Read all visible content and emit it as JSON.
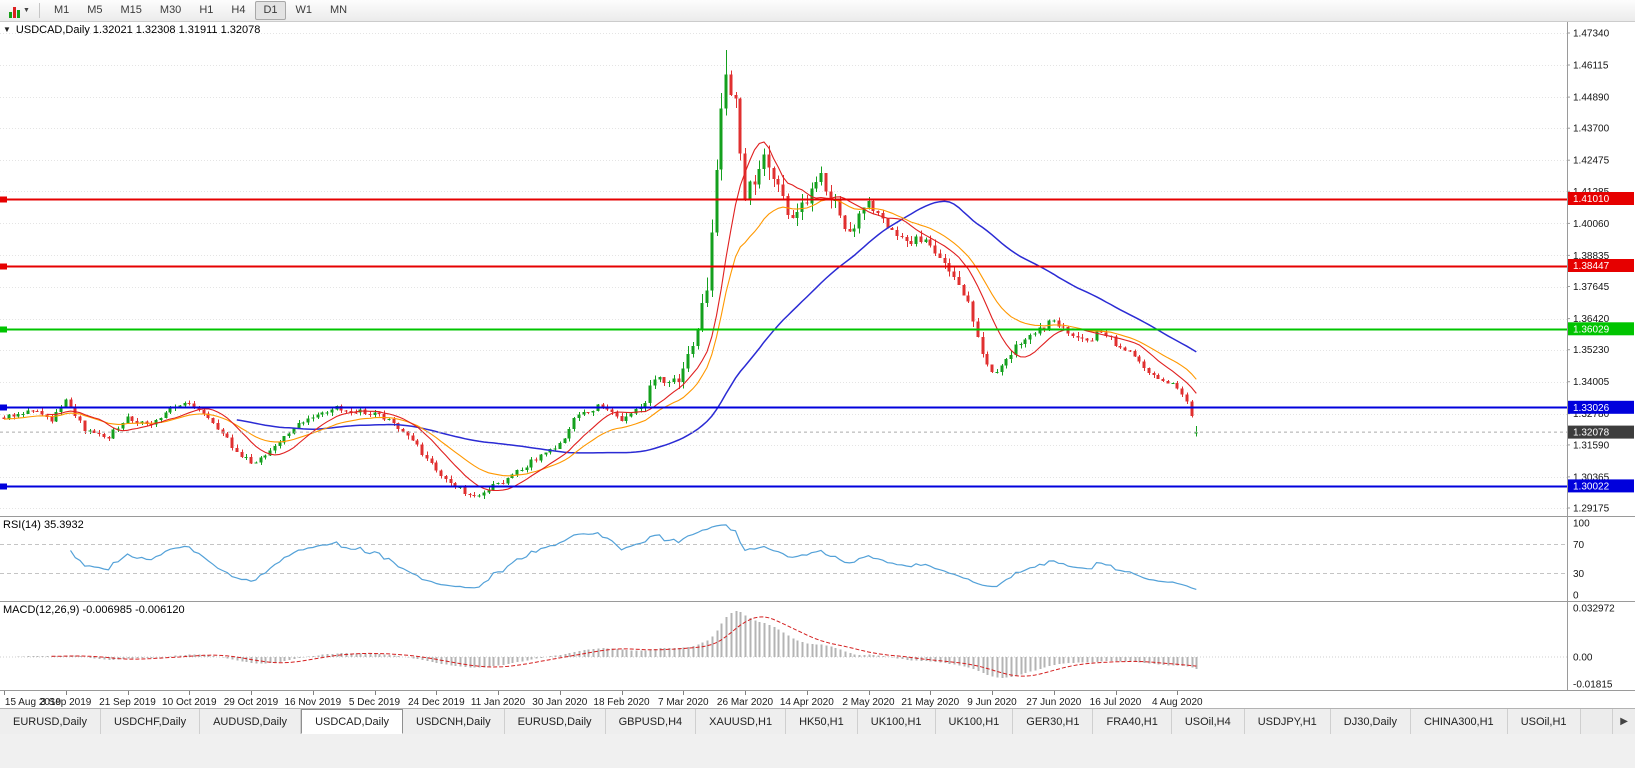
{
  "icons": {
    "one_click": "▼",
    "scroll_right": "▶",
    "chart_dropdown": "▼"
  },
  "toolbar": {
    "timeframes": [
      "M1",
      "M5",
      "M15",
      "M30",
      "H1",
      "H4",
      "D1",
      "W1",
      "MN"
    ],
    "active_timeframe": "D1"
  },
  "chart": {
    "symbol": "USDCAD",
    "period": "Daily",
    "header_text": "USDCAD,Daily 1.32021 1.32308 1.31911 1.32078",
    "quote": {
      "open": "1.32021",
      "high": "1.32308",
      "low": "1.31911",
      "close": "1.32078"
    }
  },
  "chart_data": {
    "type": "candlestick",
    "title": "USDCAD,Daily",
    "seed": 20200812,
    "candles_total": 252,
    "ylim": [
      1.2887,
      1.4776
    ],
    "price_axis_ticks": [
      "1.47340",
      "1.46115",
      "1.44890",
      "1.43700",
      "1.42475",
      "1.41285",
      "1.40060",
      "1.38835",
      "1.37645",
      "1.36420",
      "1.35230",
      "1.34005",
      "1.32780",
      "1.31590",
      "1.30365",
      "1.29175"
    ],
    "x_labels": [
      "15 Aug 2019",
      "3 Sep 2019",
      "21 Sep 2019",
      "10 Oct 2019",
      "29 Oct 2019",
      "16 Nov 2019",
      "5 Dec 2019",
      "24 Dec 2019",
      "11 Jan 2020",
      "30 Jan 2020",
      "18 Feb 2020",
      "7 Mar 2020",
      "26 Mar 2020",
      "14 Apr 2020",
      "2 May 2020",
      "21 May 2020",
      "9 Jun 2020",
      "27 Jun 2020",
      "16 Jul 2020",
      "4 Aug 2020"
    ],
    "x_label_step": 13,
    "close_anchors": [
      [
        0,
        1.3262
      ],
      [
        6,
        1.3288
      ],
      [
        10,
        1.3252
      ],
      [
        13,
        1.333
      ],
      [
        17,
        1.322
      ],
      [
        22,
        1.3192
      ],
      [
        26,
        1.3262
      ],
      [
        31,
        1.3236
      ],
      [
        36,
        1.3305
      ],
      [
        39,
        1.3318
      ],
      [
        44,
        1.3246
      ],
      [
        48,
        1.3156
      ],
      [
        52,
        1.3086
      ],
      [
        56,
        1.314
      ],
      [
        61,
        1.3226
      ],
      [
        65,
        1.3268
      ],
      [
        70,
        1.3302
      ],
      [
        74,
        1.3286
      ],
      [
        78,
        1.3282
      ],
      [
        82,
        1.3246
      ],
      [
        86,
        1.3176
      ],
      [
        91,
        1.3062
      ],
      [
        95,
        1.2996
      ],
      [
        99,
        1.2966
      ],
      [
        104,
        1.3008
      ],
      [
        108,
        1.3056
      ],
      [
        112,
        1.3108
      ],
      [
        117,
        1.3162
      ],
      [
        121,
        1.3282
      ],
      [
        125,
        1.3302
      ],
      [
        130,
        1.3258
      ],
      [
        134,
        1.3292
      ],
      [
        137,
        1.3418
      ],
      [
        140,
        1.3392
      ],
      [
        143,
        1.3426
      ],
      [
        146,
        1.359
      ],
      [
        148,
        1.3772
      ],
      [
        150,
        1.424
      ],
      [
        151,
        1.449
      ],
      [
        152,
        1.4612
      ],
      [
        153,
        1.4522
      ],
      [
        154,
        1.4446
      ],
      [
        156,
        1.4072
      ],
      [
        158,
        1.4182
      ],
      [
        160,
        1.4262
      ],
      [
        163,
        1.4126
      ],
      [
        166,
        1.4006
      ],
      [
        169,
        1.4092
      ],
      [
        172,
        1.4186
      ],
      [
        175,
        1.4086
      ],
      [
        178,
        1.3966
      ],
      [
        182,
        1.4088
      ],
      [
        186,
        1.4006
      ],
      [
        190,
        1.3946
      ],
      [
        195,
        1.3926
      ],
      [
        199,
        1.3826
      ],
      [
        203,
        1.3706
      ],
      [
        206,
        1.3512
      ],
      [
        208,
        1.3426
      ],
      [
        211,
        1.3478
      ],
      [
        214,
        1.3558
      ],
      [
        218,
        1.3598
      ],
      [
        221,
        1.3638
      ],
      [
        224,
        1.3586
      ],
      [
        228,
        1.3552
      ],
      [
        231,
        1.3598
      ],
      [
        234,
        1.3546
      ],
      [
        237,
        1.3522
      ],
      [
        240,
        1.3456
      ],
      [
        243,
        1.3406
      ],
      [
        247,
        1.3382
      ],
      [
        249,
        1.3318
      ],
      [
        251,
        1.3208
      ]
    ],
    "volatility_anchors": [
      [
        0,
        0.0016
      ],
      [
        60,
        0.0017
      ],
      [
        90,
        0.0019
      ],
      [
        120,
        0.0017
      ],
      [
        138,
        0.003
      ],
      [
        146,
        0.006
      ],
      [
        152,
        0.009
      ],
      [
        158,
        0.0072
      ],
      [
        166,
        0.0052
      ],
      [
        180,
        0.004
      ],
      [
        195,
        0.0032
      ],
      [
        210,
        0.0026
      ],
      [
        230,
        0.0019
      ],
      [
        251,
        0.0015
      ]
    ],
    "last_candle": {
      "o": 1.32021,
      "h": 1.32308,
      "l": 1.31911,
      "c": 1.32078
    },
    "peak": {
      "index": 152,
      "high": 1.4668
    },
    "colors": {
      "up": "#14a01e",
      "down": "#e03030",
      "ma_fast": "#e02020",
      "ma_mid": "#ff9800",
      "ma_slow": "#2b2bd4",
      "rsi": "#53a1d8",
      "macd_hist": "#b4b4b4",
      "macd_signal": "#d42020",
      "grid": "#e4e4e4",
      "axis_border": "#9a9a9a"
    },
    "hlines": [
      {
        "price": 1.4101,
        "label": "1.41010",
        "color": "#e60000"
      },
      {
        "price": 1.38447,
        "label": "1.38447",
        "color": "#e60000"
      },
      {
        "price": 1.36029,
        "label": "1.36029",
        "color": "#00c400"
      },
      {
        "price": 1.33026,
        "label": "1.33026",
        "color": "#0000dc"
      },
      {
        "price": 1.30022,
        "label": "1.30022",
        "color": "#0000dc"
      }
    ],
    "current_price": {
      "value": 1.32078,
      "label": "1.32078",
      "tag_color": "#3d3d3d"
    },
    "moving_averages": [
      {
        "name": "slow",
        "type": "sma",
        "period": 50
      },
      {
        "name": "mid",
        "type": "ema",
        "period": 20
      },
      {
        "name": "fast",
        "type": "sma",
        "period": 10
      }
    ],
    "rsi": {
      "label": "RSI(14) 35.3932",
      "period": 14,
      "value": 35.3932,
      "axis_ticks": [
        100,
        70,
        30,
        0
      ],
      "dashed_levels": [
        70,
        30
      ]
    },
    "macd": {
      "label": "MACD(12,26,9) -0.006985 -0.006120",
      "fast": 12,
      "slow": 26,
      "signal": 9,
      "value": -0.006985,
      "signal_value": -0.00612,
      "axis_ticks": [
        "0.032972",
        "0.00",
        "-0.01815"
      ]
    }
  },
  "bottom_tabs": {
    "active_index": 3,
    "items": [
      "EURUSD,Daily",
      "USDCHF,Daily",
      "AUDUSD,Daily",
      "USDCAD,Daily",
      "USDCNH,Daily",
      "EURUSD,Daily",
      "GBPUSD,H4",
      "XAUUSD,H1",
      "HK50,H1",
      "UK100,H1",
      "UK100,H1",
      "GER30,H1",
      "FRA40,H1",
      "USOil,H4",
      "USDJPY,H1",
      "DJ30,Daily",
      "CHINA300,H1",
      "USOil,H1"
    ]
  }
}
